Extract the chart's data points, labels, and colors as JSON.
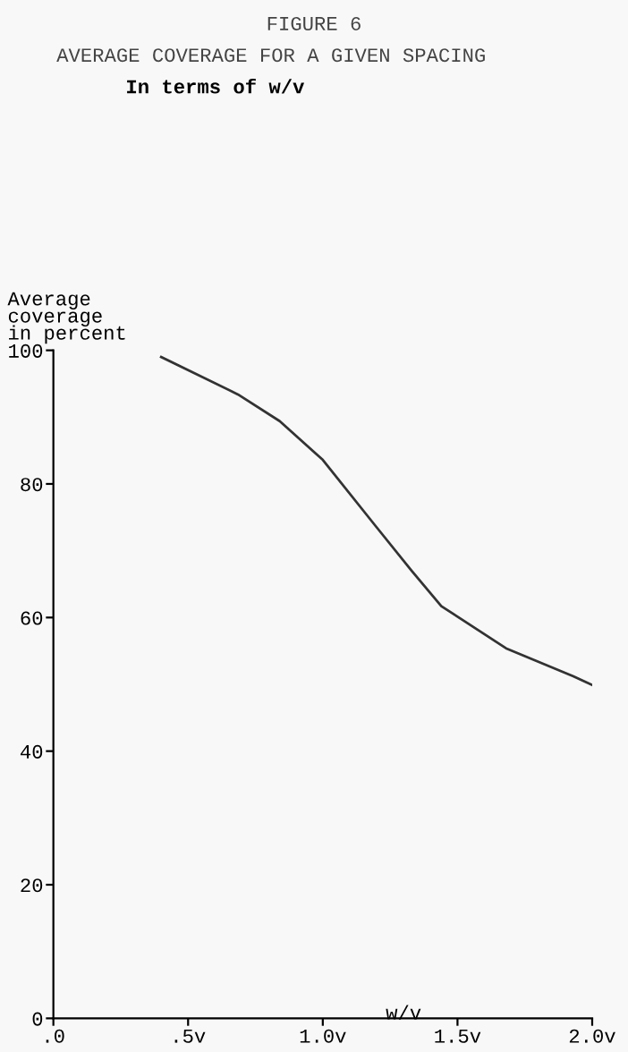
{
  "chart_data": {
    "type": "line",
    "title": "FIGURE 6",
    "subtitle": "AVERAGE COVERAGE FOR A GIVEN SPACING",
    "annotations": [
      "In terms of w/v"
    ],
    "xlabel": "w/v",
    "ylabel": "Average\ncoverage\nin percent",
    "series": [
      {
        "color": "#333333",
        "x": [
          0.4,
          0.685,
          0.84,
          1.0,
          1.196,
          1.33,
          1.44,
          1.68,
          1.93,
          2.0
        ],
        "values": [
          99,
          93.4,
          89.4,
          83.6,
          73.7,
          67,
          61.7,
          55.4,
          51.2,
          49.9
        ]
      }
    ],
    "xlim": [
      0,
      2.0
    ],
    "ylim": [
      0,
      100
    ],
    "xticks": [
      {
        "value": 0,
        "label": ".0"
      },
      {
        "value": 0.5,
        "label": ".5v"
      },
      {
        "value": 1.0,
        "label": "1.0v"
      },
      {
        "value": 1.5,
        "label": "1.5v"
      },
      {
        "value": 2.0,
        "label": "2.0v"
      }
    ],
    "yticks": [
      0,
      20,
      40,
      60,
      80,
      100
    ],
    "grid": false,
    "legend": false,
    "marker": "none",
    "line_style": "solid"
  }
}
